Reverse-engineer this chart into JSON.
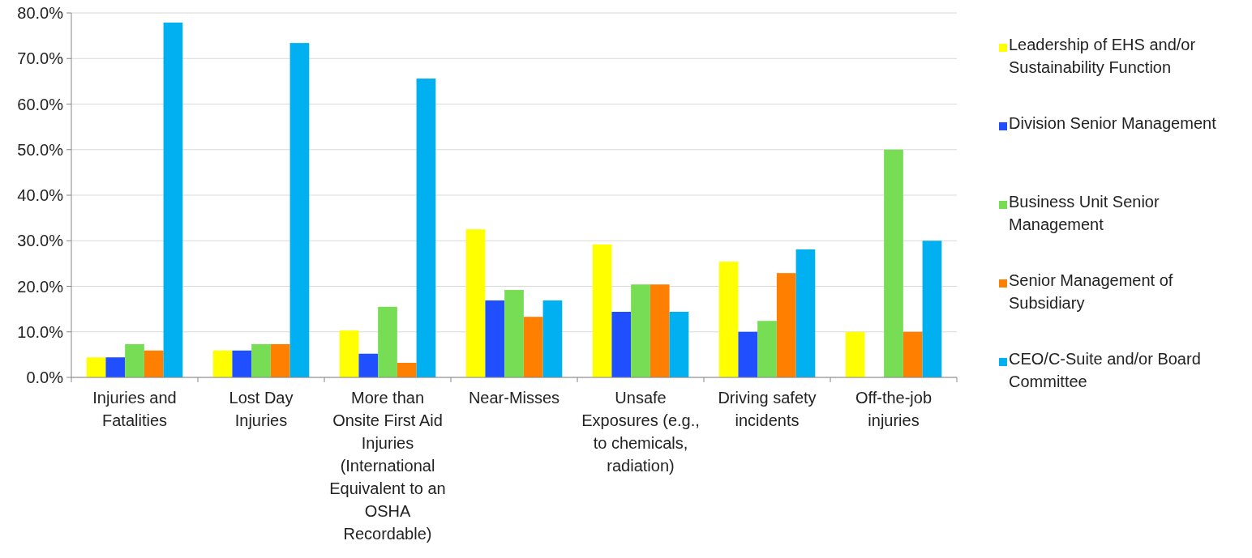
{
  "chart_data": {
    "type": "bar",
    "categories": [
      "Injuries and Fatalities",
      "Lost Day Injuries",
      "More than Onsite First Aid Injuries (International Equivalent to an OSHA Recordable)",
      "Near-Misses",
      "Unsafe Exposures (e.g., to chemicals, radiation)",
      "Driving safety incidents",
      "Off-the-job injuries"
    ],
    "series": [
      {
        "name": "Leadership of EHS and/or Sustainability Function",
        "color": "#ffff00",
        "values": [
          4.4,
          5.9,
          10.3,
          32.5,
          29.2,
          25.4,
          10.0
        ]
      },
      {
        "name": "Division Senior Management",
        "color": "#1f4fff",
        "values": [
          4.4,
          5.9,
          5.2,
          16.9,
          14.4,
          10.0,
          0
        ]
      },
      {
        "name": "Business Unit Senior Management",
        "color": "#77dd55",
        "values": [
          7.3,
          7.3,
          15.5,
          19.2,
          20.4,
          12.4,
          50.0
        ]
      },
      {
        "name": "Senior Management of Subsidiary",
        "color": "#ff7f00",
        "values": [
          5.9,
          7.3,
          3.2,
          13.3,
          20.4,
          22.9,
          10.0
        ]
      },
      {
        "name": "CEO/C-Suite and/or Board Committee",
        "color": "#00b0f0",
        "values": [
          77.9,
          73.4,
          65.6,
          16.9,
          14.4,
          28.1,
          30.0
        ]
      }
    ],
    "ylim": [
      0,
      80
    ],
    "yticks": [
      {
        "value": 0,
        "label": "0.0%"
      },
      {
        "value": 10,
        "label": "10.0%"
      },
      {
        "value": 20,
        "label": "20.0%"
      },
      {
        "value": 30,
        "label": "30.0%"
      },
      {
        "value": 40,
        "label": "40.0%"
      },
      {
        "value": 50,
        "label": "50.0%"
      },
      {
        "value": 60,
        "label": "60.0%"
      },
      {
        "value": 70,
        "label": "70.0%"
      },
      {
        "value": 80,
        "label": "80.0%"
      }
    ],
    "grid": "y",
    "legend": "right"
  }
}
